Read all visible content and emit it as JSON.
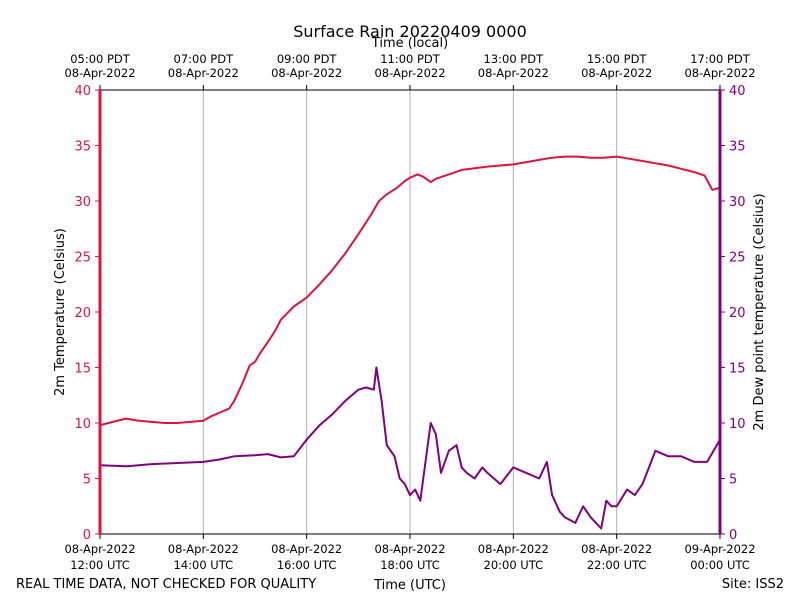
{
  "chart_data": {
    "type": "line",
    "title": "Surface Rain 20220409 0000",
    "top_axis_label": "Time (local)",
    "xlabel": "Time (UTC)",
    "ylabel_left": "2m Temperature (Celsius)",
    "ylabel_right": "2m Dew point temperature (Celsius)",
    "footer_left": "REAL TIME DATA, NOT CHECKED FOR QUALITY",
    "footer_right": "Site: ISS2",
    "ylim": [
      0,
      40
    ],
    "xlim_hours_utc": [
      12,
      24
    ],
    "yticks": [
      "0",
      "5",
      "10",
      "15",
      "20",
      "25",
      "30",
      "35",
      "40"
    ],
    "bottom_ticks": [
      {
        "hour": 12,
        "date": "08-Apr-2022",
        "time": "12:00 UTC"
      },
      {
        "hour": 14,
        "date": "08-Apr-2022",
        "time": "14:00 UTC"
      },
      {
        "hour": 16,
        "date": "08-Apr-2022",
        "time": "16:00 UTC"
      },
      {
        "hour": 18,
        "date": "08-Apr-2022",
        "time": "18:00 UTC"
      },
      {
        "hour": 20,
        "date": "08-Apr-2022",
        "time": "20:00 UTC"
      },
      {
        "hour": 22,
        "date": "08-Apr-2022",
        "time": "22:00 UTC"
      },
      {
        "hour": 24,
        "date": "09-Apr-2022",
        "time": "00:00 UTC"
      }
    ],
    "top_ticks": [
      {
        "hour": 12,
        "time": "05:00 PDT",
        "date": "08-Apr-2022"
      },
      {
        "hour": 14,
        "time": "07:00 PDT",
        "date": "08-Apr-2022"
      },
      {
        "hour": 16,
        "time": "09:00 PDT",
        "date": "08-Apr-2022"
      },
      {
        "hour": 18,
        "time": "11:00 PDT",
        "date": "08-Apr-2022"
      },
      {
        "hour": 20,
        "time": "13:00 PDT",
        "date": "08-Apr-2022"
      },
      {
        "hour": 22,
        "time": "15:00 PDT",
        "date": "08-Apr-2022"
      },
      {
        "hour": 24,
        "time": "17:00 PDT",
        "date": "08-Apr-2022"
      }
    ],
    "grid_vertical": true,
    "colors": {
      "temperature": "#dc143c",
      "dewpoint": "#800080",
      "grid": "#b0b0b0"
    },
    "series": [
      {
        "key": "temperature",
        "color": "#dc143c",
        "x": [
          12.0,
          12.25,
          12.5,
          12.75,
          13.0,
          13.25,
          13.5,
          13.75,
          14.0,
          14.15,
          14.3,
          14.5,
          14.6,
          14.75,
          14.9,
          15.0,
          15.1,
          15.25,
          15.4,
          15.5,
          15.75,
          16.0,
          16.25,
          16.5,
          16.75,
          17.0,
          17.25,
          17.4,
          17.55,
          17.75,
          17.9,
          18.0,
          18.15,
          18.25,
          18.4,
          18.5,
          18.75,
          19.0,
          19.5,
          20.0,
          20.25,
          20.5,
          20.75,
          21.0,
          21.25,
          21.5,
          21.75,
          22.0,
          22.25,
          22.5,
          22.75,
          23.0,
          23.25,
          23.5,
          23.7,
          23.85,
          24.0
        ],
        "y": [
          9.8,
          10.1,
          10.4,
          10.2,
          10.1,
          10.0,
          10.0,
          10.1,
          10.2,
          10.6,
          10.9,
          11.3,
          12.0,
          13.5,
          15.2,
          15.5,
          16.3,
          17.3,
          18.4,
          19.3,
          20.5,
          21.3,
          22.5,
          23.8,
          25.3,
          27.0,
          28.8,
          30.0,
          30.6,
          31.2,
          31.8,
          32.1,
          32.4,
          32.2,
          31.7,
          32.0,
          32.4,
          32.8,
          33.1,
          33.3,
          33.5,
          33.7,
          33.9,
          34.0,
          34.0,
          33.9,
          33.9,
          34.0,
          33.8,
          33.6,
          33.4,
          33.2,
          32.9,
          32.6,
          32.3,
          31.0,
          31.2
        ]
      },
      {
        "key": "dewpoint",
        "color": "#800080",
        "x": [
          12.0,
          12.5,
          13.0,
          13.5,
          14.0,
          14.3,
          14.6,
          15.0,
          15.25,
          15.5,
          15.75,
          16.0,
          16.25,
          16.5,
          16.75,
          17.0,
          17.15,
          17.3,
          17.35,
          17.45,
          17.55,
          17.7,
          17.8,
          17.9,
          18.0,
          18.1,
          18.2,
          18.3,
          18.4,
          18.5,
          18.6,
          18.75,
          18.9,
          19.0,
          19.1,
          19.25,
          19.4,
          19.5,
          19.75,
          20.0,
          20.25,
          20.5,
          20.65,
          20.75,
          20.9,
          21.0,
          21.2,
          21.35,
          21.5,
          21.7,
          21.8,
          21.9,
          22.0,
          22.2,
          22.35,
          22.5,
          22.75,
          23.0,
          23.25,
          23.5,
          23.75,
          24.0
        ],
        "y": [
          6.2,
          6.1,
          6.3,
          6.4,
          6.5,
          6.7,
          7.0,
          7.1,
          7.2,
          6.9,
          7.0,
          8.5,
          9.8,
          10.8,
          12.0,
          13.0,
          13.2,
          13.0,
          15.0,
          12.0,
          8.0,
          7.0,
          5.0,
          4.5,
          3.5,
          4.0,
          3.0,
          6.5,
          10.0,
          9.0,
          5.5,
          7.5,
          8.0,
          6.0,
          5.5,
          5.0,
          6.0,
          5.5,
          4.5,
          6.0,
          5.5,
          5.0,
          6.5,
          3.5,
          2.0,
          1.5,
          1.0,
          2.5,
          1.5,
          0.5,
          3.0,
          2.5,
          2.5,
          4.0,
          3.5,
          4.5,
          7.5,
          7.0,
          7.0,
          6.5,
          6.5,
          8.5
        ]
      }
    ]
  }
}
